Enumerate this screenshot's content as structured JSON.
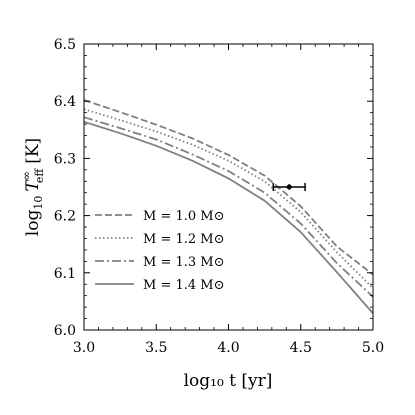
{
  "chart_data": {
    "type": "line",
    "xlabel": "log₁₀ t [yr]",
    "ylabel_parts": {
      "base": "log",
      "base_sub": "10",
      "var": "T",
      "var_sup": "∞",
      "var_sub": "eff",
      "unit": "[K]"
    },
    "xlim": [
      3.0,
      5.0
    ],
    "ylim": [
      6.0,
      6.5
    ],
    "xticks": [
      "3.0",
      "3.5",
      "4.0",
      "4.5",
      "5.0"
    ],
    "yticks": [
      "6.0",
      "6.1",
      "6.2",
      "6.3",
      "6.4",
      "6.5"
    ],
    "xtick_values": [
      3.0,
      3.5,
      4.0,
      4.5,
      5.0
    ],
    "ytick_values": [
      6.0,
      6.1,
      6.2,
      6.3,
      6.4,
      6.5
    ],
    "grid": false,
    "legend_position": "bottom-left",
    "series": [
      {
        "name": "M = 1.0 M⊙",
        "style": "dashed",
        "color": "#808080",
        "x": [
          3.0,
          3.25,
          3.5,
          3.75,
          4.0,
          4.25,
          4.5,
          4.75,
          5.0
        ],
        "y": [
          6.402,
          6.381,
          6.359,
          6.335,
          6.306,
          6.27,
          6.216,
          6.146,
          6.097
        ]
      },
      {
        "name": "M = 1.2 M⊙",
        "style": "dotted",
        "color": "#808080",
        "x": [
          3.0,
          3.25,
          3.5,
          3.75,
          4.0,
          4.25,
          4.5,
          4.75,
          5.0
        ],
        "y": [
          6.386,
          6.367,
          6.347,
          6.324,
          6.296,
          6.26,
          6.206,
          6.136,
          6.073
        ]
      },
      {
        "name": "M = 1.3 M⊙",
        "style": "dashdot",
        "color": "#808080",
        "x": [
          3.0,
          3.25,
          3.5,
          3.75,
          4.0,
          4.25,
          4.5,
          4.75,
          5.0
        ],
        "y": [
          6.372,
          6.353,
          6.333,
          6.307,
          6.278,
          6.24,
          6.186,
          6.117,
          6.058
        ]
      },
      {
        "name": "M = 1.4 M⊙",
        "style": "solid",
        "color": "#808080",
        "x": [
          3.0,
          3.25,
          3.5,
          3.75,
          4.0,
          4.25,
          4.5,
          4.75,
          5.0
        ],
        "y": [
          6.364,
          6.344,
          6.322,
          6.296,
          6.265,
          6.226,
          6.171,
          6.101,
          6.029
        ]
      }
    ],
    "data_point": {
      "x": 4.42,
      "y": 6.25,
      "xerr": [
        4.31,
        4.53
      ],
      "yerr": [
        6.245,
        6.255
      ],
      "color": "#000000"
    }
  }
}
